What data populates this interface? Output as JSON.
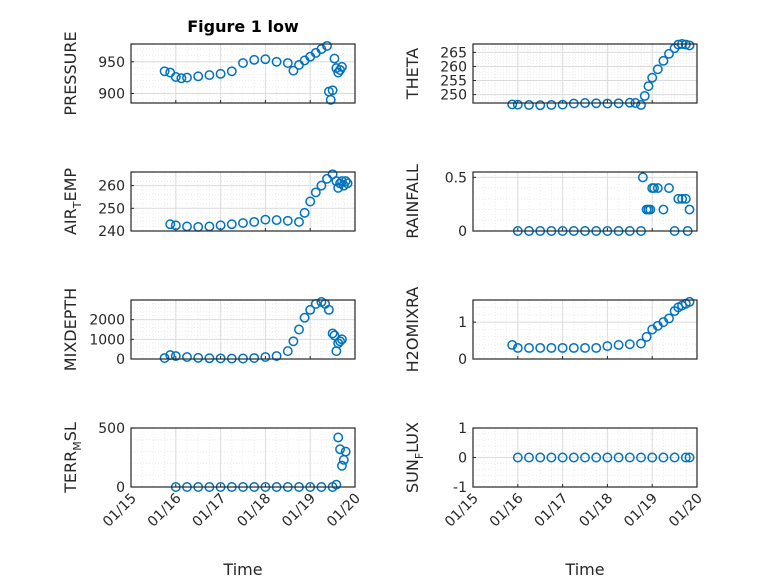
{
  "figure": {
    "title": "Figure 1 low",
    "xlabel": "Time",
    "x_ticks": [
      "01/15",
      "01/16",
      "01/17",
      "01/18",
      "01/19",
      "01/20"
    ]
  },
  "colors": {
    "marker": "#0072BD",
    "axes": "#262626",
    "grid": "#dcdcdc",
    "minorgrid": "#ececec"
  },
  "chart_data": [
    {
      "type": "scatter",
      "ylabel": "PRESSURE",
      "y_ticks": [
        "900",
        "950"
      ],
      "ylim": [
        885,
        978
      ],
      "xlim": [
        "01/15",
        "01/20"
      ],
      "grid": true,
      "series": [
        {
          "x": [
            "01/15 18:00",
            "01/15 21:00",
            "01/16 00:00",
            "01/16 03:00",
            "01/16 06:00",
            "01/16 12:00",
            "01/16 18:00",
            "01/17 00:00",
            "01/17 06:00",
            "01/17 12:00",
            "01/17 18:00",
            "01/18 00:00",
            "01/18 06:00",
            "01/18 12:00",
            "01/18 15:00",
            "01/18 18:00",
            "01/18 21:00",
            "01/19 00:00",
            "01/19 03:00",
            "01/19 06:00",
            "01/19 09:00",
            "01/19 10:00",
            "01/19 11:00",
            "01/19 12:00",
            "01/19 13:00",
            "01/19 14:00",
            "01/19 15:00",
            "01/19 16:00",
            "01/19 17:00"
          ],
          "values": [
            935,
            933,
            926,
            924,
            925,
            927,
            929,
            931,
            935,
            948,
            953,
            954,
            950,
            948,
            936,
            945,
            952,
            958,
            964,
            970,
            975,
            903,
            890,
            905,
            955,
            940,
            933,
            937,
            942
          ]
        }
      ]
    },
    {
      "type": "scatter",
      "ylabel": "THETA",
      "y_ticks": [
        "250",
        "255",
        "260",
        "265"
      ],
      "ylim": [
        247,
        268
      ],
      "xlim": [
        "01/15",
        "01/20"
      ],
      "grid": true,
      "series": [
        {
          "x": [
            "01/15 21:00",
            "01/16 00:00",
            "01/16 06:00",
            "01/16 12:00",
            "01/16 18:00",
            "01/17 00:00",
            "01/17 06:00",
            "01/17 12:00",
            "01/17 18:00",
            "01/18 00:00",
            "01/18 06:00",
            "01/18 12:00",
            "01/18 15:00",
            "01/18 18:00",
            "01/18 20:00",
            "01/18 22:00",
            "01/19 00:00",
            "01/19 03:00",
            "01/19 06:00",
            "01/19 09:00",
            "01/19 12:00",
            "01/19 14:00",
            "01/19 16:00",
            "01/19 18:00",
            "01/19 20:00"
          ],
          "values": [
            246.5,
            246.4,
            246.3,
            246.2,
            246.3,
            246.4,
            246.8,
            247.0,
            246.9,
            246.8,
            246.9,
            247.1,
            247.0,
            246.3,
            249.5,
            253.0,
            256.0,
            259.0,
            262.0,
            264.5,
            266.5,
            267.8,
            268.0,
            267.8,
            267.5
          ]
        }
      ]
    },
    {
      "type": "scatter",
      "ylabel": "AIR_TEMP",
      "y_ticks": [
        "240",
        "250",
        "260"
      ],
      "ylim": [
        240,
        266
      ],
      "xlim": [
        "01/15",
        "01/20"
      ],
      "grid": true,
      "series": [
        {
          "x": [
            "01/15 21:00",
            "01/16 00:00",
            "01/16 06:00",
            "01/16 12:00",
            "01/16 18:00",
            "01/17 00:00",
            "01/17 06:00",
            "01/17 12:00",
            "01/17 18:00",
            "01/18 00:00",
            "01/18 06:00",
            "01/18 12:00",
            "01/18 18:00",
            "01/18 21:00",
            "01/19 00:00",
            "01/19 03:00",
            "01/19 06:00",
            "01/19 09:00",
            "01/19 12:00",
            "01/19 14:00",
            "01/19 15:00",
            "01/19 16:00",
            "01/19 17:00",
            "01/19 18:00",
            "01/19 19:00",
            "01/19 20:00"
          ],
          "values": [
            243,
            242.5,
            242,
            241.8,
            242,
            242.5,
            243,
            243.5,
            244,
            245,
            244.8,
            244.5,
            244,
            248,
            253,
            257,
            260,
            263,
            265,
            262,
            259,
            261,
            262,
            260,
            262,
            261
          ]
        }
      ]
    },
    {
      "type": "scatter",
      "ylabel": "RAINFALL",
      "y_ticks": [
        "0",
        "0.5"
      ],
      "ylim": [
        0,
        0.55
      ],
      "xlim": [
        "01/15",
        "01/20"
      ],
      "grid": true,
      "series": [
        {
          "x": [
            "01/16 00:00",
            "01/16 06:00",
            "01/16 12:00",
            "01/16 18:00",
            "01/17 00:00",
            "01/17 06:00",
            "01/17 12:00",
            "01/17 18:00",
            "01/18 00:00",
            "01/18 06:00",
            "01/18 12:00",
            "01/18 18:00",
            "01/18 19:00",
            "01/18 21:00",
            "01/18 22:00",
            "01/18 23:00",
            "01/19 00:00",
            "01/19 01:00",
            "01/19 03:00",
            "01/19 06:00",
            "01/19 09:00",
            "01/19 12:00",
            "01/19 14:00",
            "01/19 16:00",
            "01/19 18:00",
            "01/19 19:00",
            "01/19 20:00"
          ],
          "values": [
            0,
            0,
            0,
            0,
            0,
            0,
            0,
            0,
            0,
            0,
            0,
            0,
            0.5,
            0.2,
            0.2,
            0.2,
            0.4,
            0.4,
            0.4,
            0.2,
            0.4,
            0,
            0.3,
            0.3,
            0.3,
            0,
            0.2
          ]
        }
      ]
    },
    {
      "type": "scatter",
      "ylabel": "MIXDEPTH",
      "y_ticks": [
        "0",
        "1000",
        "2000"
      ],
      "ylim": [
        0,
        3000
      ],
      "xlim": [
        "01/15",
        "01/20"
      ],
      "grid": true,
      "series": [
        {
          "x": [
            "01/15 18:00",
            "01/15 21:00",
            "01/16 00:00",
            "01/16 06:00",
            "01/16 12:00",
            "01/16 18:00",
            "01/17 00:00",
            "01/17 06:00",
            "01/17 12:00",
            "01/17 18:00",
            "01/18 00:00",
            "01/18 06:00",
            "01/18 12:00",
            "01/18 15:00",
            "01/18 18:00",
            "01/18 21:00",
            "01/19 00:00",
            "01/19 03:00",
            "01/19 06:00",
            "01/19 08:00",
            "01/19 10:00",
            "01/19 12:00",
            "01/19 13:00",
            "01/19 14:00",
            "01/19 15:00",
            "01/19 16:00",
            "01/19 17:00"
          ],
          "values": [
            50,
            200,
            150,
            100,
            60,
            40,
            30,
            20,
            25,
            50,
            100,
            150,
            400,
            900,
            1500,
            2100,
            2500,
            2800,
            2900,
            2800,
            2500,
            1300,
            1200,
            400,
            800,
            900,
            1000
          ]
        }
      ]
    },
    {
      "type": "scatter",
      "ylabel": "H2OMIXRA",
      "y_ticks": [
        "0",
        "1"
      ],
      "ylim": [
        0,
        1.6
      ],
      "xlim": [
        "01/15",
        "01/20"
      ],
      "grid": true,
      "series": [
        {
          "x": [
            "01/15 21:00",
            "01/16 00:00",
            "01/16 06:00",
            "01/16 12:00",
            "01/16 18:00",
            "01/17 00:00",
            "01/17 06:00",
            "01/17 12:00",
            "01/17 18:00",
            "01/18 00:00",
            "01/18 06:00",
            "01/18 12:00",
            "01/18 18:00",
            "01/18 21:00",
            "01/19 00:00",
            "01/19 03:00",
            "01/19 06:00",
            "01/19 09:00",
            "01/19 12:00",
            "01/19 14:00",
            "01/19 16:00",
            "01/19 18:00",
            "01/19 20:00"
          ],
          "values": [
            0.38,
            0.3,
            0.3,
            0.3,
            0.3,
            0.3,
            0.3,
            0.3,
            0.3,
            0.35,
            0.38,
            0.4,
            0.42,
            0.6,
            0.8,
            0.9,
            1.0,
            1.1,
            1.3,
            1.4,
            1.45,
            1.5,
            1.55
          ]
        }
      ]
    },
    {
      "type": "scatter",
      "ylabel": "TERR_MSL",
      "y_ticks": [
        "0",
        "500"
      ],
      "ylim": [
        0,
        500
      ],
      "xlim": [
        "01/15",
        "01/20"
      ],
      "grid": true,
      "series": [
        {
          "x": [
            "01/16 00:00",
            "01/16 06:00",
            "01/16 12:00",
            "01/16 18:00",
            "01/17 00:00",
            "01/17 06:00",
            "01/17 12:00",
            "01/17 18:00",
            "01/18 00:00",
            "01/18 06:00",
            "01/18 12:00",
            "01/18 18:00",
            "01/19 00:00",
            "01/19 06:00",
            "01/19 12:00",
            "01/19 14:00",
            "01/19 15:00",
            "01/19 16:00",
            "01/19 17:00",
            "01/19 18:00",
            "01/19 19:00"
          ],
          "values": [
            0,
            0,
            0,
            0,
            0,
            0,
            0,
            0,
            0,
            0,
            0,
            0,
            0,
            0,
            0,
            20,
            420,
            320,
            180,
            230,
            300
          ]
        }
      ]
    },
    {
      "type": "scatter",
      "ylabel": "SUN_FLUX",
      "y_ticks": [
        "-1",
        "0",
        "1"
      ],
      "ylim": [
        -1,
        1
      ],
      "xlim": [
        "01/15",
        "01/20"
      ],
      "grid": true,
      "series": [
        {
          "x": [
            "01/16 00:00",
            "01/16 06:00",
            "01/16 12:00",
            "01/16 18:00",
            "01/17 00:00",
            "01/17 06:00",
            "01/17 12:00",
            "01/17 18:00",
            "01/18 00:00",
            "01/18 06:00",
            "01/18 12:00",
            "01/18 18:00",
            "01/19 00:00",
            "01/19 06:00",
            "01/19 12:00",
            "01/19 18:00",
            "01/19 20:00"
          ],
          "values": [
            0,
            0,
            0,
            0,
            0,
            0,
            0,
            0,
            0,
            0,
            0,
            0,
            0,
            0,
            0,
            0,
            0
          ]
        }
      ]
    }
  ]
}
